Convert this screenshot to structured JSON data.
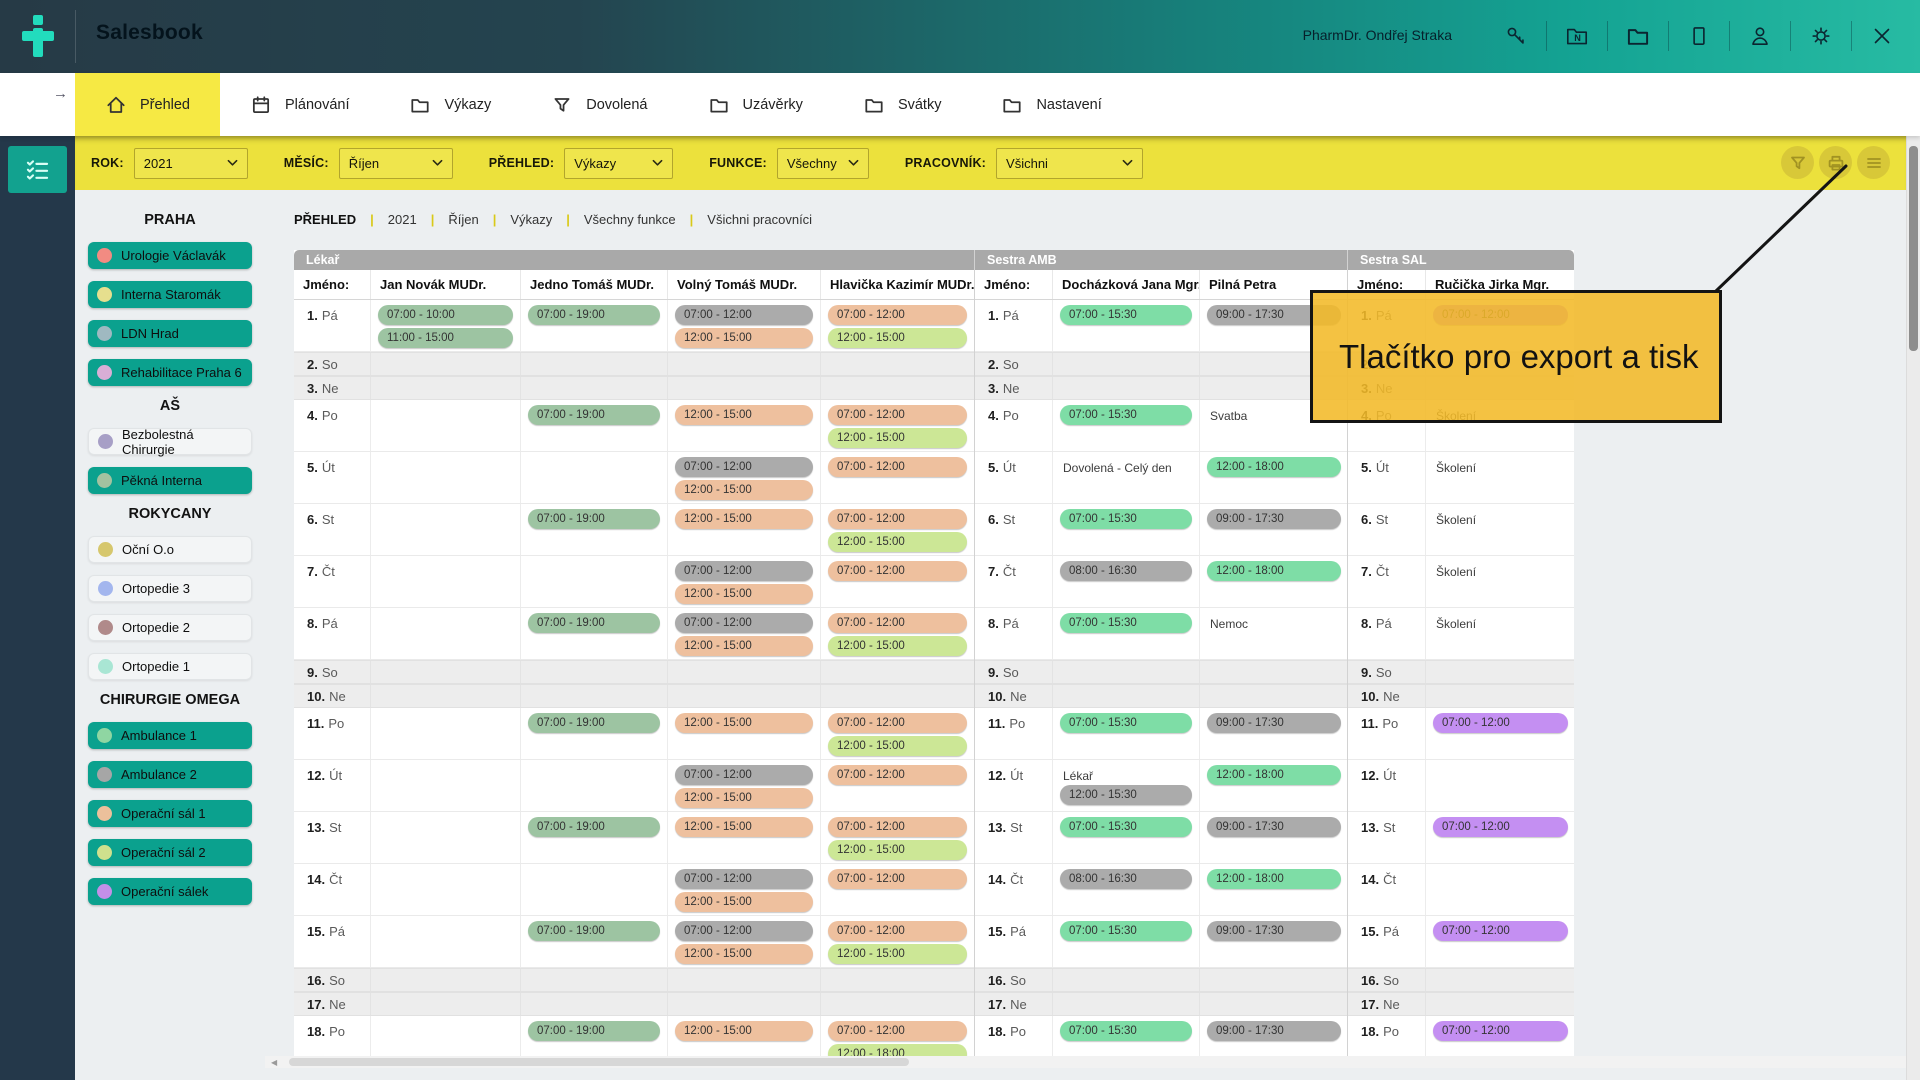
{
  "app": {
    "title": "Salesbook",
    "user": "PharmDr. Ondřej Straka"
  },
  "header": {
    "icons": [
      "key",
      "folder-n",
      "folder",
      "window",
      "user",
      "gear",
      "close"
    ]
  },
  "nav": {
    "back_arrow": "→",
    "tabs": [
      {
        "label": "Přehled",
        "icon": "home",
        "active": true
      },
      {
        "label": "Plánování",
        "icon": "calendar",
        "active": false
      },
      {
        "label": "Výkazy",
        "icon": "folder",
        "active": false
      },
      {
        "label": "Dovolená",
        "icon": "funnel",
        "active": false
      },
      {
        "label": "Uzávěrky",
        "icon": "folder",
        "active": false
      },
      {
        "label": "Svátky",
        "icon": "folder",
        "active": false
      },
      {
        "label": "Nastavení",
        "icon": "folder",
        "active": false
      }
    ]
  },
  "filters": {
    "controls": [
      {
        "label": "ROK:",
        "value": "2021"
      },
      {
        "label": "MĚSÍC:",
        "value": "Říjen"
      },
      {
        "label": "PŘEHLED:",
        "value": "Výkazy"
      },
      {
        "label": "FUNKCE:",
        "value": "Všechny"
      },
      {
        "label": "PRACOVNÍK:",
        "value": "Všichni"
      }
    ],
    "buttons": [
      {
        "name": "filter"
      },
      {
        "name": "print"
      },
      {
        "name": "menu"
      }
    ]
  },
  "tooltip": {
    "text": "Tlačítko pro export a tisk",
    "color": "#f2b928"
  },
  "sidebar": {
    "sections": [
      {
        "title": "PRAHA",
        "items": [
          {
            "label": "Urologie Václavák",
            "dot": "#f28b82",
            "active": true
          },
          {
            "label": "Interna Staromák",
            "dot": "#e6df8e",
            "active": true
          },
          {
            "label": "LDN Hrad",
            "dot": "#9fb9c1",
            "active": true
          },
          {
            "label": "Rehabilitace Praha 6",
            "dot": "#d9aed6",
            "active": true
          }
        ]
      },
      {
        "title": "AŠ",
        "items": [
          {
            "label": "Bezbolestná Chirurgie",
            "dot": "#a79fc6",
            "active": false
          },
          {
            "label": "Pěkná Interna",
            "dot": "#a3c2a0",
            "active": true
          }
        ]
      },
      {
        "title": "ROKYCANY",
        "items": [
          {
            "label": "Oční O.o",
            "dot": "#d6c76d",
            "active": false
          },
          {
            "label": "Ortopedie 3",
            "dot": "#a3b6ee",
            "active": false
          },
          {
            "label": "Ortopedie 2",
            "dot": "#b08a8a",
            "active": false
          },
          {
            "label": "Ortopedie 1",
            "dot": "#a9e6d4",
            "active": false
          }
        ]
      },
      {
        "title": "CHIRURGIE OMEGA",
        "items": [
          {
            "label": "Ambulance 1",
            "dot": "#8fd6a2",
            "active": true
          },
          {
            "label": "Ambulance 2",
            "dot": "#a6a6a6",
            "active": true
          },
          {
            "label": "Operační sál 1",
            "dot": "#ecc09b",
            "active": true
          },
          {
            "label": "Operační sál 2",
            "dot": "#cfe08d",
            "active": true
          },
          {
            "label": "Operační sálek",
            "dot": "#c38fe8",
            "active": true
          }
        ]
      }
    ]
  },
  "breadcrumb": [
    "PŘEHLED",
    "2021",
    "Říjen",
    "Výkazy",
    "Všechny funkce",
    "Všichni pracovníci"
  ],
  "schedule": {
    "name_label": "Jméno:",
    "chip_colors": {
      "sage": "#9dc4a2",
      "green": "#7edda6",
      "gray": "#ababab",
      "salmon": "#eec09e",
      "lime": "#cce796",
      "purple": "#c48ff2"
    },
    "days": [
      {
        "num": "1.",
        "dow": "Pá",
        "weekend": false
      },
      {
        "num": "2.",
        "dow": "So",
        "weekend": true
      },
      {
        "num": "3.",
        "dow": "Ne",
        "weekend": true
      },
      {
        "num": "4.",
        "dow": "Po",
        "weekend": false
      },
      {
        "num": "5.",
        "dow": "Út",
        "weekend": false
      },
      {
        "num": "6.",
        "dow": "St",
        "weekend": false
      },
      {
        "num": "7.",
        "dow": "Čt",
        "weekend": false
      },
      {
        "num": "8.",
        "dow": "Pá",
        "weekend": false
      },
      {
        "num": "9.",
        "dow": "So",
        "weekend": true
      },
      {
        "num": "10.",
        "dow": "Ne",
        "weekend": true
      },
      {
        "num": "11.",
        "dow": "Po",
        "weekend": false
      },
      {
        "num": "12.",
        "dow": "Út",
        "weekend": false
      },
      {
        "num": "13.",
        "dow": "St",
        "weekend": false
      },
      {
        "num": "14.",
        "dow": "Čt",
        "weekend": false
      },
      {
        "num": "15.",
        "dow": "Pá",
        "weekend": false
      },
      {
        "num": "16.",
        "dow": "So",
        "weekend": true
      },
      {
        "num": "17.",
        "dow": "Ne",
        "weekend": true
      },
      {
        "num": "18.",
        "dow": "Po",
        "weekend": false
      }
    ],
    "groups": [
      {
        "name": "Lékař",
        "people": [
          {
            "name": "Jan Novák MUDr.",
            "cells": {
              "1": [
                [
                  "07:00 - 10:00",
                  "sage"
                ],
                [
                  "11:00 - 15:00",
                  "sage"
                ]
              ]
            }
          },
          {
            "name": "Jedno Tomáš MUDr.",
            "cells": {
              "1": [
                [
                  "07:00 - 19:00",
                  "sage"
                ]
              ],
              "4": [
                [
                  "07:00 - 19:00",
                  "sage"
                ]
              ],
              "6": [
                [
                  "07:00 - 19:00",
                  "sage"
                ]
              ],
              "8": [
                [
                  "07:00 - 19:00",
                  "sage"
                ]
              ],
              "11": [
                [
                  "07:00 - 19:00",
                  "sage"
                ]
              ],
              "13": [
                [
                  "07:00 - 19:00",
                  "sage"
                ]
              ],
              "15": [
                [
                  "07:00 - 19:00",
                  "sage"
                ]
              ],
              "18": [
                [
                  "07:00 - 19:00",
                  "sage"
                ]
              ]
            }
          },
          {
            "name": "Volný Tomáš MUDr.",
            "cells": {
              "1": [
                [
                  "07:00 - 12:00",
                  "gray"
                ],
                [
                  "12:00 - 15:00",
                  "salmon"
                ]
              ],
              "4": [
                [
                  "12:00 - 15:00",
                  "salmon"
                ]
              ],
              "5": [
                [
                  "07:00 - 12:00",
                  "gray"
                ],
                [
                  "12:00 - 15:00",
                  "salmon"
                ]
              ],
              "6": [
                [
                  "12:00 - 15:00",
                  "salmon"
                ]
              ],
              "7": [
                [
                  "07:00 - 12:00",
                  "gray"
                ],
                [
                  "12:00 - 15:00",
                  "salmon"
                ]
              ],
              "8": [
                [
                  "07:00 - 12:00",
                  "gray"
                ],
                [
                  "12:00 - 15:00",
                  "salmon"
                ]
              ],
              "11": [
                [
                  "12:00 - 15:00",
                  "salmon"
                ]
              ],
              "12": [
                [
                  "07:00 - 12:00",
                  "gray"
                ],
                [
                  "12:00 - 15:00",
                  "salmon"
                ]
              ],
              "13": [
                [
                  "12:00 - 15:00",
                  "salmon"
                ]
              ],
              "14": [
                [
                  "07:00 - 12:00",
                  "gray"
                ],
                [
                  "12:00 - 15:00",
                  "salmon"
                ]
              ],
              "15": [
                [
                  "07:00 - 12:00",
                  "gray"
                ],
                [
                  "12:00 - 15:00",
                  "salmon"
                ]
              ],
              "18": [
                [
                  "12:00 - 15:00",
                  "salmon"
                ]
              ]
            }
          },
          {
            "name": "Hlavička Kazimír MUDr.",
            "cells": {
              "1": [
                [
                  "07:00 - 12:00",
                  "salmon"
                ],
                [
                  "12:00 - 15:00",
                  "lime"
                ]
              ],
              "4": [
                [
                  "07:00 - 12:00",
                  "salmon"
                ],
                [
                  "12:00 - 15:00",
                  "lime"
                ]
              ],
              "5": [
                [
                  "07:00 - 12:00",
                  "salmon"
                ]
              ],
              "6": [
                [
                  "07:00 - 12:00",
                  "salmon"
                ],
                [
                  "12:00 - 15:00",
                  "lime"
                ]
              ],
              "7": [
                [
                  "07:00 - 12:00",
                  "salmon"
                ]
              ],
              "8": [
                [
                  "07:00 - 12:00",
                  "salmon"
                ],
                [
                  "12:00 - 15:00",
                  "lime"
                ]
              ],
              "11": [
                [
                  "07:00 - 12:00",
                  "salmon"
                ],
                [
                  "12:00 - 15:00",
                  "lime"
                ]
              ],
              "12": [
                [
                  "07:00 - 12:00",
                  "salmon"
                ]
              ],
              "13": [
                [
                  "07:00 - 12:00",
                  "salmon"
                ],
                [
                  "12:00 - 15:00",
                  "lime"
                ]
              ],
              "14": [
                [
                  "07:00 - 12:00",
                  "salmon"
                ]
              ],
              "15": [
                [
                  "07:00 - 12:00",
                  "salmon"
                ],
                [
                  "12:00 - 15:00",
                  "lime"
                ]
              ],
              "18": [
                [
                  "07:00 - 12:00",
                  "salmon"
                ],
                [
                  "12:00 - 18:00",
                  "lime"
                ]
              ]
            }
          }
        ]
      },
      {
        "name": "Sestra AMB",
        "people": [
          {
            "name": "Docházková Jana Mgr.",
            "cells": {
              "1": [
                [
                  "07:00 - 15:30",
                  "green"
                ]
              ],
              "4": [
                [
                  "07:00 - 15:30",
                  "green"
                ]
              ],
              "5": [
                [
                  "Dovolená - Celý den",
                  "text"
                ]
              ],
              "6": [
                [
                  "07:00 - 15:30",
                  "green"
                ]
              ],
              "7": [
                [
                  "08:00 - 16:30",
                  "gray"
                ]
              ],
              "8": [
                [
                  "07:00 - 15:30",
                  "green"
                ]
              ],
              "11": [
                [
                  "07:00 - 15:30",
                  "green"
                ]
              ],
              "12": [
                [
                  "Lékař",
                  "text"
                ],
                [
                  "12:00 - 15:30",
                  "gray"
                ]
              ],
              "13": [
                [
                  "07:00 - 15:30",
                  "green"
                ]
              ],
              "14": [
                [
                  "08:00 - 16:30",
                  "gray"
                ]
              ],
              "15": [
                [
                  "07:00 - 15:30",
                  "green"
                ]
              ],
              "18": [
                [
                  "07:00 - 15:30",
                  "green"
                ]
              ]
            }
          },
          {
            "name": "Pilná Petra",
            "cells": {
              "1": [
                [
                  "09:00 - 17:30",
                  "gray"
                ]
              ],
              "4": [
                [
                  "Svatba",
                  "text"
                ]
              ],
              "5": [
                [
                  "12:00 - 18:00",
                  "green"
                ]
              ],
              "6": [
                [
                  "09:00 - 17:30",
                  "gray"
                ]
              ],
              "7": [
                [
                  "12:00 - 18:00",
                  "green"
                ]
              ],
              "8": [
                [
                  "Nemoc",
                  "text"
                ]
              ],
              "11": [
                [
                  "09:00 - 17:30",
                  "gray"
                ]
              ],
              "12": [
                [
                  "12:00 - 18:00",
                  "green"
                ]
              ],
              "13": [
                [
                  "09:00 - 17:30",
                  "gray"
                ]
              ],
              "14": [
                [
                  "12:00 - 18:00",
                  "green"
                ]
              ],
              "15": [
                [
                  "09:00 - 17:30",
                  "gray"
                ]
              ],
              "18": [
                [
                  "09:00 - 17:30",
                  "gray"
                ]
              ]
            }
          }
        ]
      },
      {
        "name": "Sestra SAL",
        "people": [
          {
            "name": "Ručička Jirka Mgr.",
            "cells": {
              "1": [
                [
                  "07:00 - 12:00",
                  "purple"
                ]
              ],
              "4": [
                [
                  "Školení",
                  "text"
                ]
              ],
              "5": [
                [
                  "Školení",
                  "text"
                ]
              ],
              "6": [
                [
                  "Školení",
                  "text"
                ]
              ],
              "7": [
                [
                  "Školení",
                  "text"
                ]
              ],
              "8": [
                [
                  "Školení",
                  "text"
                ]
              ],
              "11": [
                [
                  "07:00 - 12:00",
                  "purple"
                ]
              ],
              "13": [
                [
                  "07:00 - 12:00",
                  "purple"
                ]
              ],
              "15": [
                [
                  "07:00 - 12:00",
                  "purple"
                ]
              ],
              "18": [
                [
                  "07:00 - 12:00",
                  "purple"
                ]
              ]
            }
          }
        ]
      }
    ]
  }
}
